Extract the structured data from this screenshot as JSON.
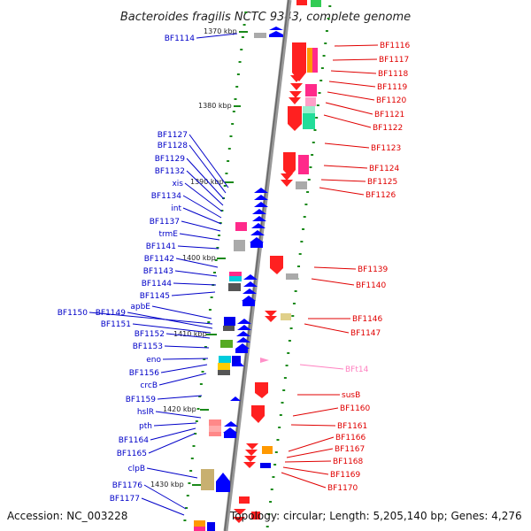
{
  "title": "Bacteroides fragilis NCTC 9343, complete genome",
  "footer": {
    "accession": "Accession: NC_003228",
    "topology": "Topology: circular; Length: 5,205,140 bp; Genes: 4,276"
  },
  "scale_labels": [
    "1370 kbp",
    "1380 kbp",
    "1390 kbp",
    "1400 kbp",
    "1410 kbp",
    "1420 kbp",
    "1430 kbp"
  ],
  "left_genes": [
    "BF1114",
    "BF1127",
    "BF1128",
    "BF1129",
    "BF1132",
    "xis",
    "BF1134",
    "int",
    "BF1137",
    "trmE",
    "BF1141",
    "BF1142",
    "BF1143",
    "BF1144",
    "BF1145",
    "apbE",
    "BF1150",
    "BF1149",
    "BF1151",
    "BF1152",
    "BF1153",
    "eno",
    "BF1156",
    "crcB",
    "BF1159",
    "hslR",
    "pth",
    "BF1164",
    "BF1165",
    "clpB",
    "BF1176",
    "BF1177"
  ],
  "right_genes": [
    "BF1116",
    "BF1117",
    "BF1118",
    "BF1119",
    "BF1120",
    "BF1121",
    "BF1122",
    "BF1123",
    "BF1124",
    "BF1125",
    "BF1126",
    "BF1139",
    "BF1140",
    "BF1146",
    "BF1147",
    "BFt14",
    "susB",
    "BF1160",
    "BF1161",
    "BF1166",
    "BF1167",
    "BF1168",
    "BF1169",
    "BF1170"
  ],
  "colors": {
    "left_label": "#0000c8",
    "right_label": "#e00000",
    "trna_label": "#ff80c0",
    "backbone": "#888888",
    "tick": "#1a8a1a"
  }
}
